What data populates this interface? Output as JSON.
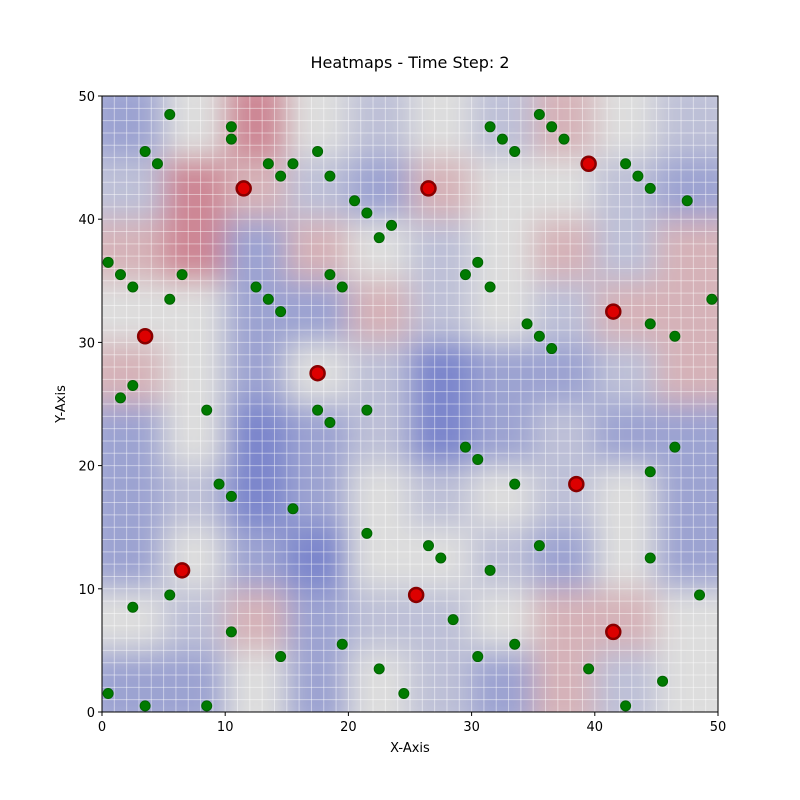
{
  "chart_data": {
    "type": "heatmap",
    "title": "Heatmaps - Time Step: 2",
    "x_label": "X-Axis",
    "y_label": "Y-Axis",
    "xlim": [
      0,
      50
    ],
    "ylim": [
      0,
      50
    ],
    "xticks": [
      0,
      10,
      20,
      30,
      40,
      50
    ],
    "yticks": [
      0,
      10,
      20,
      30,
      40,
      50
    ],
    "heatmap": {
      "colormap": [
        "#3b4cc0",
        "#dddddd",
        "#b40426"
      ],
      "range": [
        0,
        1
      ],
      "values": [
        [
          0.3,
          0.5,
          0.7,
          0.5,
          0.4,
          0.5,
          0.4,
          0.6,
          0.5,
          0.4
        ],
        [
          0.4,
          0.7,
          0.6,
          0.4,
          0.3,
          0.6,
          0.5,
          0.5,
          0.4,
          0.3
        ],
        [
          0.6,
          0.7,
          0.3,
          0.6,
          0.5,
          0.4,
          0.5,
          0.6,
          0.4,
          0.6
        ],
        [
          0.5,
          0.5,
          0.3,
          0.3,
          0.6,
          0.4,
          0.5,
          0.4,
          0.6,
          0.6
        ],
        [
          0.6,
          0.5,
          0.3,
          0.5,
          0.4,
          0.2,
          0.3,
          0.3,
          0.4,
          0.6
        ],
        [
          0.3,
          0.5,
          0.2,
          0.3,
          0.4,
          0.2,
          0.3,
          0.4,
          0.3,
          0.3
        ],
        [
          0.3,
          0.4,
          0.2,
          0.3,
          0.5,
          0.4,
          0.5,
          0.4,
          0.5,
          0.3
        ],
        [
          0.3,
          0.5,
          0.3,
          0.2,
          0.5,
          0.5,
          0.4,
          0.3,
          0.5,
          0.3
        ],
        [
          0.5,
          0.4,
          0.6,
          0.3,
          0.4,
          0.4,
          0.5,
          0.6,
          0.6,
          0.5
        ],
        [
          0.3,
          0.3,
          0.5,
          0.3,
          0.5,
          0.4,
          0.3,
          0.6,
          0.4,
          0.5
        ]
      ]
    },
    "points": [
      {
        "color": "#007a00",
        "edge": "#006400",
        "size": 5,
        "x": [
          3.5,
          4.5,
          5.5,
          10.5,
          10.5,
          13.5,
          14.5,
          15.5,
          17.5,
          18.5,
          20.5,
          21.5,
          22.5,
          23.5,
          31.5,
          32.5,
          33.5,
          35.5,
          36.5,
          37.5,
          42.5,
          43.5,
          44.5,
          47.5,
          0.5,
          1.5,
          2.5,
          5.5,
          6.5,
          12.5,
          13.5,
          14.5,
          18.5,
          19.5,
          29.5,
          30.5,
          31.5,
          34.5,
          35.5,
          36.5,
          44.5,
          46.5,
          49.5,
          1.5,
          2.5,
          8.5,
          17.5,
          18.5,
          21.5,
          29.5,
          30.5,
          33.5,
          44.5,
          46.5,
          9.5,
          10.5,
          15.5,
          21.5,
          26.5,
          27.5,
          31.5,
          35.5,
          44.5,
          48.5,
          2.5,
          5.5,
          10.5,
          14.5,
          19.5,
          22.5,
          28.5,
          30.5,
          33.5,
          39.5,
          45.5,
          0.5,
          3.5,
          8.5,
          24.5,
          42.5
        ],
        "y": [
          45.5,
          44.5,
          48.5,
          47.5,
          46.5,
          44.5,
          43.5,
          44.5,
          45.5,
          43.5,
          41.5,
          40.5,
          38.5,
          39.5,
          47.5,
          46.5,
          45.5,
          48.5,
          47.5,
          46.5,
          44.5,
          43.5,
          42.5,
          41.5,
          36.5,
          35.5,
          34.5,
          33.5,
          35.5,
          34.5,
          33.5,
          32.5,
          35.5,
          34.5,
          35.5,
          36.5,
          34.5,
          31.5,
          30.5,
          29.5,
          31.5,
          30.5,
          33.5,
          25.5,
          26.5,
          24.5,
          24.5,
          23.5,
          24.5,
          21.5,
          20.5,
          18.5,
          19.5,
          21.5,
          18.5,
          17.5,
          16.5,
          14.5,
          13.5,
          12.5,
          11.5,
          13.5,
          12.5,
          9.5,
          8.5,
          9.5,
          6.5,
          4.5,
          5.5,
          3.5,
          7.5,
          4.5,
          5.5,
          3.5,
          2.5,
          1.5,
          0.5,
          0.5,
          1.5,
          0.5
        ]
      },
      {
        "color": "#dd0000",
        "edge": "#880000",
        "size": 7,
        "x": [
          11.5,
          26.5,
          39.5,
          3.5,
          17.5,
          41.5,
          38.5,
          6.5,
          25.5,
          41.5
        ],
        "y": [
          42.5,
          42.5,
          44.5,
          30.5,
          27.5,
          32.5,
          18.5,
          11.5,
          9.5,
          6.5
        ]
      }
    ]
  }
}
